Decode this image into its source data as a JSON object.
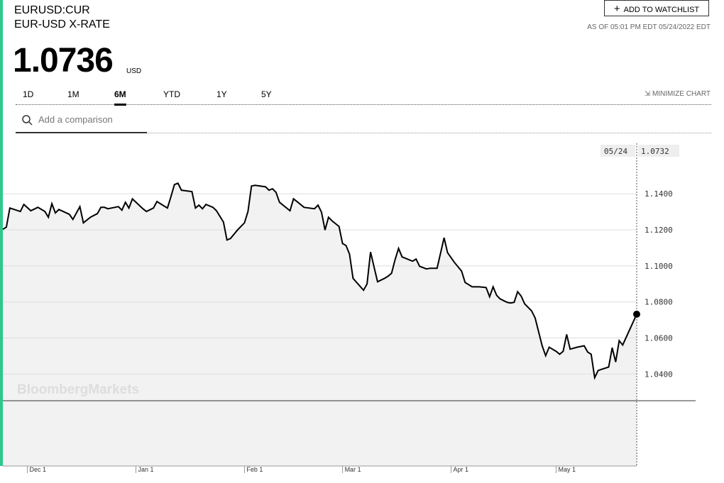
{
  "header": {
    "ticker": "EURUSD:CUR",
    "name": "EUR-USD X-RATE",
    "price": "1.0736",
    "currency": "USD",
    "watchlist_button": "ADD TO WATCHLIST",
    "timestamp": "AS OF 05:01 PM EDT 05/24/2022 EDT"
  },
  "tabs": {
    "items": [
      "1D",
      "1M",
      "6M",
      "YTD",
      "1Y",
      "5Y"
    ],
    "active": 2,
    "minimize": "MINIMIZE CHART"
  },
  "search": {
    "placeholder": "Add a comparison"
  },
  "watermark": "BloombergMarkets",
  "chart_data": {
    "type": "area",
    "color": "#000000",
    "fill": "#f2f2f2",
    "crosshair_date": "05/24",
    "x": [
      -7,
      -6,
      -5,
      -2,
      -1,
      1,
      3,
      5,
      6,
      7,
      8,
      9,
      12,
      13,
      15,
      16,
      18,
      20,
      21,
      22,
      23,
      26,
      27,
      28,
      29,
      30,
      33,
      34,
      36,
      37,
      38,
      40,
      41,
      42,
      43,
      44,
      47,
      48,
      49,
      50,
      51,
      53,
      54,
      56,
      57,
      58,
      60,
      62,
      63,
      64,
      65,
      68,
      69,
      70,
      71,
      72,
      75,
      76,
      77,
      79,
      82,
      83,
      84,
      85,
      86,
      87,
      89,
      90,
      91,
      92,
      93,
      96,
      97,
      98,
      100,
      102,
      103,
      104,
      105,
      106,
      107,
      110,
      111,
      112,
      114,
      115,
      117,
      119,
      120,
      122,
      124,
      125,
      127,
      129,
      131,
      132,
      133,
      134,
      135,
      137,
      138,
      139,
      140,
      141,
      142,
      144,
      145,
      147,
      148,
      149,
      151,
      152,
      153,
      154,
      155,
      157,
      159,
      160,
      161,
      162,
      163,
      166,
      167,
      168,
      169,
      170,
      174
    ],
    "values": [
      1.1203,
      1.1215,
      1.1321,
      1.1302,
      1.1341,
      1.1306,
      1.1325,
      1.1302,
      1.127,
      1.1345,
      1.1294,
      1.1313,
      1.1286,
      1.1258,
      1.1329,
      1.1239,
      1.127,
      1.129,
      1.1325,
      1.1325,
      1.1317,
      1.1329,
      1.1309,
      1.1353,
      1.1321,
      1.1372,
      1.1317,
      1.1302,
      1.1321,
      1.1357,
      1.1345,
      1.1321,
      1.1384,
      1.1451,
      1.1459,
      1.142,
      1.1412,
      1.1321,
      1.1337,
      1.1317,
      1.1341,
      1.1325,
      1.1306,
      1.1243,
      1.1144,
      1.1152,
      1.1199,
      1.1239,
      1.1302,
      1.1443,
      1.1447,
      1.1439,
      1.142,
      1.1428,
      1.1408,
      1.1353,
      1.1306,
      1.1372,
      1.1357,
      1.1325,
      1.1317,
      1.1337,
      1.1298,
      1.1199,
      1.127,
      1.125,
      1.1219,
      1.1124,
      1.1113,
      1.1065,
      1.0931,
      1.0865,
      1.09,
      1.1077,
      1.0912,
      1.0931,
      1.0943,
      1.0959,
      1.1034,
      1.1097,
      1.105,
      1.1026,
      1.1038,
      1.0998,
      1.0983,
      1.0987,
      1.0987,
      1.1156,
      1.1073,
      1.1018,
      1.0971,
      1.0908,
      1.0884,
      1.0884,
      1.088,
      1.0829,
      1.0884,
      1.0837,
      1.0817,
      1.0798,
      1.0794,
      1.0798,
      1.0857,
      1.0833,
      1.079,
      1.075,
      1.0711,
      1.0557,
      1.0502,
      1.0549,
      1.0526,
      1.051,
      1.0526,
      1.062,
      1.0538,
      1.0549,
      1.0557,
      1.0522,
      1.051,
      1.038,
      1.042,
      1.0439,
      1.0546,
      1.0467,
      1.0585,
      1.0561,
      1.0732
    ],
    "xlim": [
      -7,
      174
    ],
    "xticks": [
      {
        "value": 0,
        "label": "Dec 1"
      },
      {
        "value": 31,
        "label": "Jan 1"
      },
      {
        "value": 62,
        "label": "Feb 1"
      },
      {
        "value": 90,
        "label": "Mar 1"
      },
      {
        "value": 121,
        "label": "Apr 1"
      },
      {
        "value": 151,
        "label": "May 1"
      }
    ],
    "ylim": [
      0.989,
      1.17
    ],
    "yticks": [
      {
        "value": 1.04,
        "label": "1.0400"
      },
      {
        "value": 1.06,
        "label": "1.0600"
      },
      {
        "value": 1.08,
        "label": "1.0800"
      },
      {
        "value": 1.1,
        "label": "1.1000"
      },
      {
        "value": 1.12,
        "label": "1.1200"
      },
      {
        "value": 1.14,
        "label": "1.1400"
      }
    ],
    "grid": true
  }
}
